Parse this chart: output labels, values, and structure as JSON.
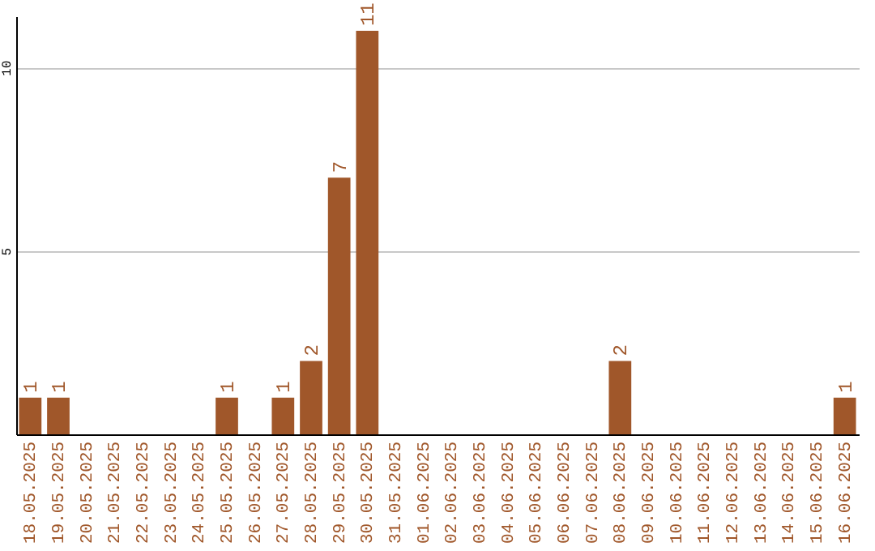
{
  "chart_data": {
    "type": "bar",
    "categories": [
      "18.05.2025",
      "19.05.2025",
      "20.05.2025",
      "21.05.2025",
      "22.05.2025",
      "23.05.2025",
      "24.05.2025",
      "25.05.2025",
      "26.05.2025",
      "27.05.2025",
      "28.05.2025",
      "29.05.2025",
      "30.05.2025",
      "31.05.2025",
      "01.06.2025",
      "02.06.2025",
      "03.06.2025",
      "04.06.2025",
      "05.06.2025",
      "06.06.2025",
      "07.06.2025",
      "08.06.2025",
      "09.06.2025",
      "10.06.2025",
      "11.06.2025",
      "12.06.2025",
      "13.06.2025",
      "14.06.2025",
      "15.06.2025",
      "16.06.2025"
    ],
    "values": [
      1,
      1,
      0,
      0,
      0,
      0,
      0,
      1,
      0,
      1,
      2,
      7,
      11,
      0,
      0,
      0,
      0,
      0,
      0,
      0,
      0,
      2,
      0,
      0,
      0,
      0,
      0,
      0,
      0,
      1
    ],
    "value_labels": [
      "1",
      "1",
      null,
      null,
      null,
      null,
      null,
      "1",
      null,
      "1",
      "2",
      "7",
      "11",
      null,
      null,
      null,
      null,
      null,
      null,
      null,
      null,
      "2",
      null,
      null,
      null,
      null,
      null,
      null,
      null,
      "1"
    ],
    "color": "#a0572a",
    "ylim": [
      0,
      11.4
    ],
    "yticks": [
      5,
      10
    ],
    "grid": "y"
  }
}
